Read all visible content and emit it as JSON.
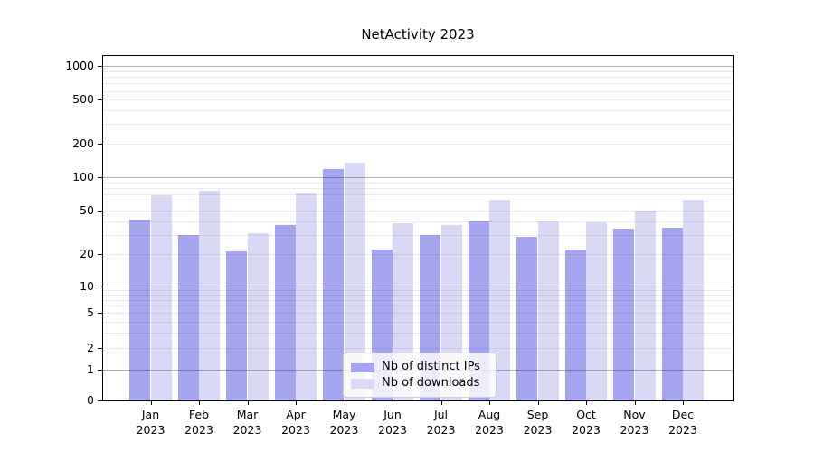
{
  "chart_data": {
    "type": "bar",
    "title": "NetActivity 2023",
    "categories": [
      "Jan",
      "Feb",
      "Mar",
      "Apr",
      "May",
      "Jun",
      "Jul",
      "Aug",
      "Sep",
      "Oct",
      "Nov",
      "Dec"
    ],
    "category_year": "2023",
    "series": [
      {
        "name": "Nb of distinct IPs",
        "color": "#a5a5f0",
        "values": [
          41,
          30,
          21,
          37,
          118,
          22,
          30,
          40,
          29,
          22,
          34,
          35
        ]
      },
      {
        "name": "Nb of downloads",
        "color": "#d9d9f6",
        "values": [
          69,
          75,
          31,
          72,
          135,
          38,
          37,
          63,
          40,
          39,
          50,
          63
        ]
      }
    ],
    "y_axis": {
      "scale": "symlog",
      "tick_labels": [
        "0",
        "1",
        "2",
        "5",
        "10",
        "20",
        "50",
        "100",
        "200",
        "500",
        "1000"
      ],
      "tick_values": [
        0,
        1,
        2,
        5,
        10,
        20,
        50,
        100,
        200,
        500,
        1000
      ],
      "top_value": 1300
    },
    "x_axis": {
      "label_format": "month over year"
    },
    "legend": {
      "position": "lower center"
    },
    "grid": {
      "horizontal_major": true,
      "horizontal_minor": true,
      "drawn_above_bars": true
    }
  }
}
